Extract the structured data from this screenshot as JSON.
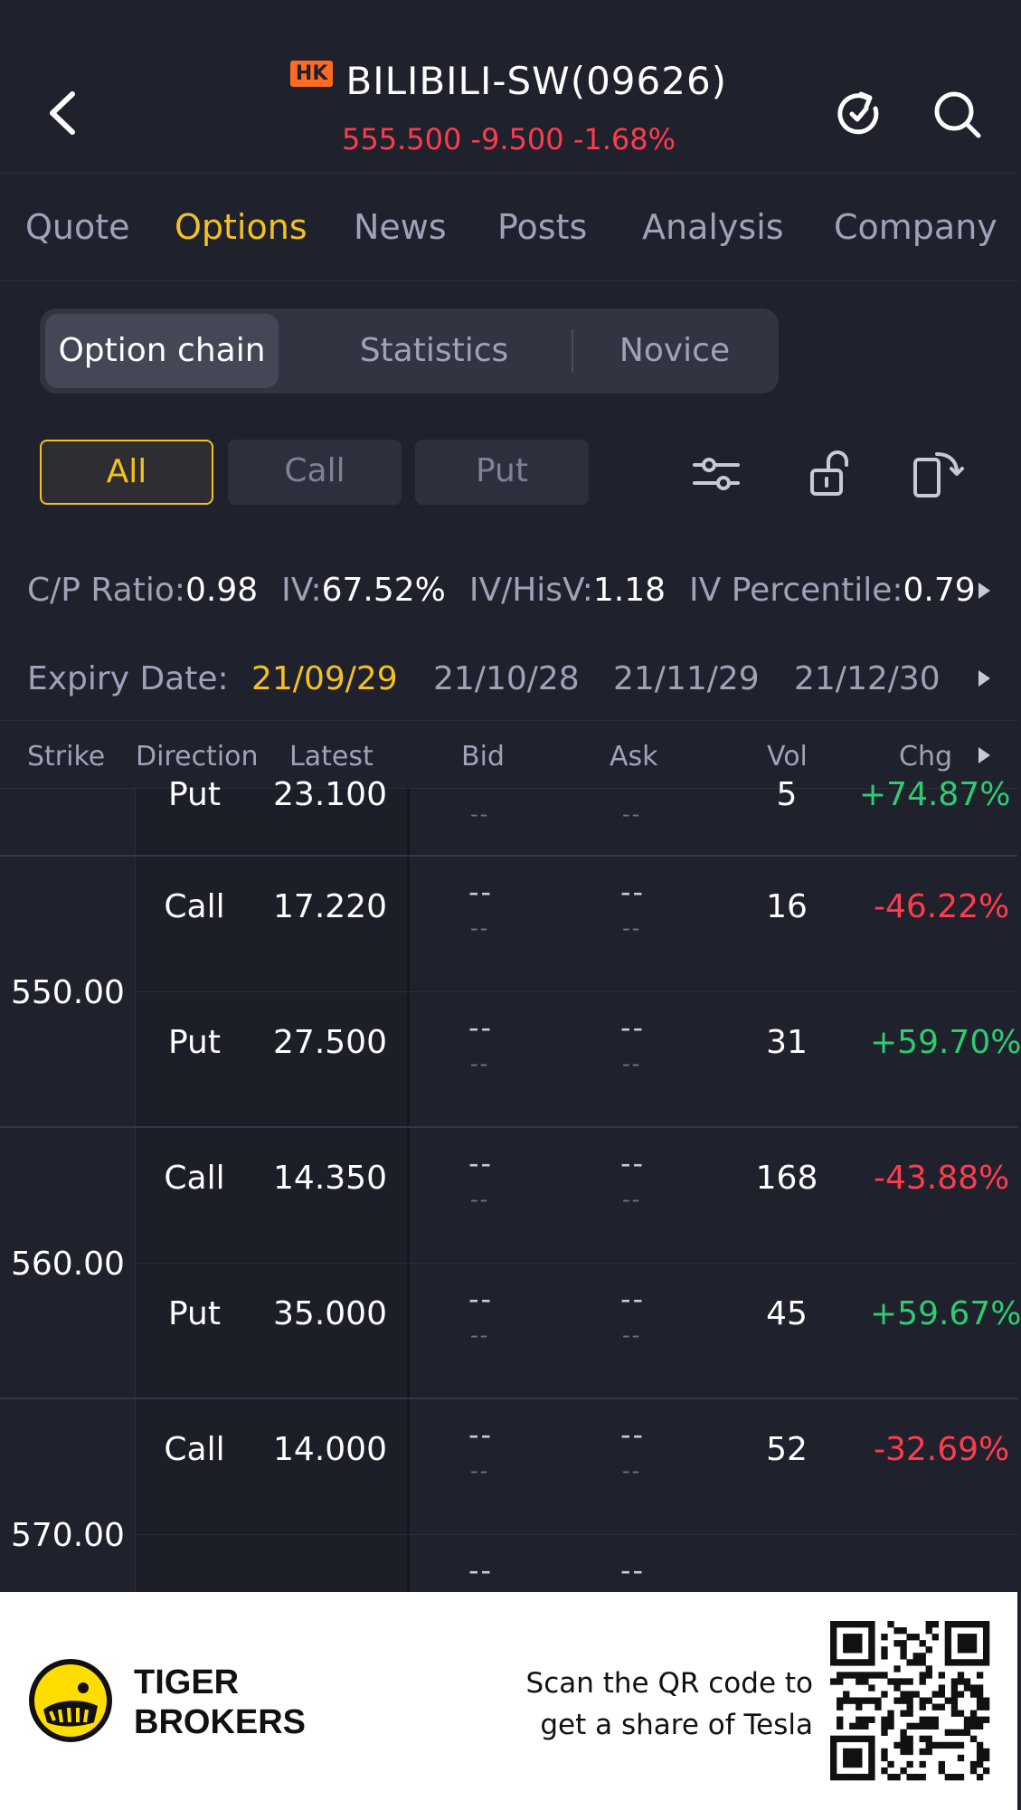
{
  "header": {
    "market_badge": "HK",
    "title": "BILIBILI-SW(09626)",
    "price_line": "555.500 -9.500 -1.68%"
  },
  "tabs": [
    {
      "label": "Quote"
    },
    {
      "label": "Options",
      "active": true
    },
    {
      "label": "News"
    },
    {
      "label": "Posts"
    },
    {
      "label": "Analysis"
    },
    {
      "label": "Company"
    }
  ],
  "segment": {
    "items": [
      "Option chain",
      "Statistics",
      "Novice"
    ],
    "active": "Option chain"
  },
  "filters": {
    "items": [
      "All",
      "Call",
      "Put"
    ],
    "active": "All",
    "icons": [
      "sliders-icon",
      "unlock-icon",
      "rotate-screen-icon"
    ]
  },
  "stats": [
    {
      "key": "C/P Ratio:",
      "value": "0.98"
    },
    {
      "key": "IV:",
      "value": "67.52%"
    },
    {
      "key": "IV/HisV:",
      "value": "1.18"
    },
    {
      "key": "IV Percentile:",
      "value": "0.79"
    }
  ],
  "expiry": {
    "label": "Expiry Date:",
    "dates": [
      "21/09/29",
      "21/10/28",
      "21/11/29",
      "21/12/30"
    ],
    "active": "21/09/29"
  },
  "table": {
    "columns": [
      "Strike",
      "Direction",
      "Latest",
      "Bid",
      "Ask",
      "Vol",
      "Chg"
    ],
    "partial_row": {
      "direction": "Put",
      "latest": "23.100",
      "bid": "--",
      "ask": "--",
      "vol": "5",
      "chg": "+74.87%"
    },
    "groups": [
      {
        "strike": "550.00",
        "rows": [
          {
            "direction": "Call",
            "latest": "17.220",
            "bid_top": "--",
            "bid_bottom": "--",
            "ask_top": "--",
            "ask_bottom": "--",
            "vol": "16",
            "chg": "-46.22%",
            "chg_dir": "down"
          },
          {
            "direction": "Put",
            "latest": "27.500",
            "bid_top": "--",
            "bid_bottom": "--",
            "ask_top": "--",
            "ask_bottom": "--",
            "vol": "31",
            "chg": "+59.70%",
            "chg_dir": "up"
          }
        ]
      },
      {
        "strike": "560.00",
        "rows": [
          {
            "direction": "Call",
            "latest": "14.350",
            "bid_top": "--",
            "bid_bottom": "--",
            "ask_top": "--",
            "ask_bottom": "--",
            "vol": "168",
            "chg": "-43.88%",
            "chg_dir": "down"
          },
          {
            "direction": "Put",
            "latest": "35.000",
            "bid_top": "--",
            "bid_bottom": "--",
            "ask_top": "--",
            "ask_bottom": "--",
            "vol": "45",
            "chg": "+59.67%",
            "chg_dir": "up"
          }
        ]
      },
      {
        "strike": "570.00",
        "rows": [
          {
            "direction": "Call",
            "latest": "14.000",
            "bid_top": "--",
            "bid_bottom": "--",
            "ask_top": "--",
            "ask_bottom": "--",
            "vol": "52",
            "chg": "-32.69%",
            "chg_dir": "down"
          },
          {
            "direction": "",
            "latest": "",
            "bid_top": "--",
            "bid_bottom": "",
            "ask_top": "--",
            "ask_bottom": "",
            "vol": "",
            "chg": "",
            "chg_dir": "none"
          }
        ]
      }
    ]
  },
  "footer": {
    "brand_line1": "TIGER",
    "brand_line2": "BROKERS",
    "scan_line1": "Scan the QR code to",
    "scan_line2": "get a share of Tesla"
  },
  "colors": {
    "background": "#1f212c",
    "accent": "#f5c121",
    "down": "#ff3c4e",
    "up": "#2ecc71",
    "badge": "#ff6b23"
  }
}
